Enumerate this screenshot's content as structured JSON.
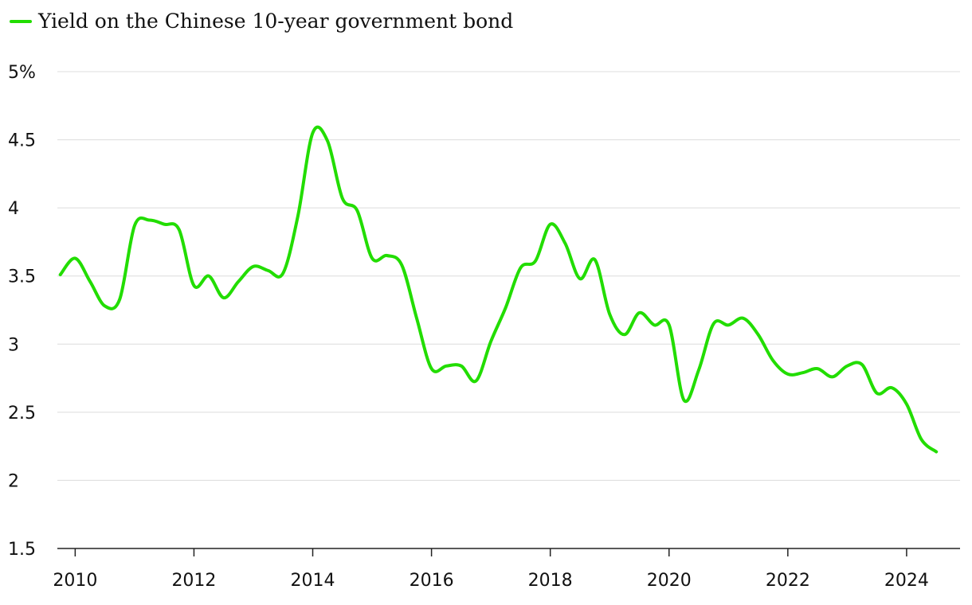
{
  "colors": {
    "series": "#22dd00",
    "grid": "#dcdcdc",
    "text": "#111111"
  },
  "chart_data": {
    "type": "line",
    "title": "",
    "xlabel": "",
    "ylabel": "",
    "legend_position": "top-left",
    "grid": true,
    "ylim": [
      1.5,
      5
    ],
    "xlim": [
      2009.7,
      2024.9
    ],
    "y_ticks": [
      1.5,
      2,
      2.5,
      3,
      3.5,
      4,
      4.5,
      5
    ],
    "y_tick_labels": [
      "1.5",
      "2",
      "2.5",
      "3",
      "3.5",
      "4",
      "4.5",
      "5%"
    ],
    "x_ticks": [
      2010,
      2012,
      2014,
      2016,
      2018,
      2020,
      2022,
      2024
    ],
    "x_tick_labels": [
      "2010",
      "2012",
      "2014",
      "2016",
      "2018",
      "2020",
      "2022",
      "2024"
    ],
    "series": [
      {
        "name": "Yield on the Chinese 10-year government bond",
        "x": [
          2009.75,
          2010.0,
          2010.25,
          2010.5,
          2010.75,
          2011.0,
          2011.25,
          2011.5,
          2011.75,
          2012.0,
          2012.25,
          2012.5,
          2012.75,
          2013.0,
          2013.25,
          2013.5,
          2013.75,
          2014.0,
          2014.25,
          2014.5,
          2014.75,
          2015.0,
          2015.25,
          2015.5,
          2015.75,
          2016.0,
          2016.25,
          2016.5,
          2016.75,
          2017.0,
          2017.25,
          2017.5,
          2017.75,
          2018.0,
          2018.25,
          2018.5,
          2018.75,
          2019.0,
          2019.25,
          2019.5,
          2019.75,
          2020.0,
          2020.25,
          2020.5,
          2020.75,
          2021.0,
          2021.25,
          2021.5,
          2021.75,
          2022.0,
          2022.25,
          2022.5,
          2022.75,
          2023.0,
          2023.25,
          2023.5,
          2023.75,
          2024.0,
          2024.25,
          2024.5
        ],
        "values": [
          3.51,
          3.63,
          3.46,
          3.28,
          3.33,
          3.87,
          3.91,
          3.88,
          3.84,
          3.43,
          3.5,
          3.34,
          3.46,
          3.57,
          3.54,
          3.52,
          3.94,
          4.55,
          4.49,
          4.07,
          3.98,
          3.63,
          3.65,
          3.58,
          3.19,
          2.82,
          2.84,
          2.84,
          2.73,
          3.02,
          3.27,
          3.56,
          3.61,
          3.88,
          3.74,
          3.48,
          3.62,
          3.22,
          3.07,
          3.23,
          3.14,
          3.14,
          2.59,
          2.81,
          3.15,
          3.14,
          3.19,
          3.07,
          2.88,
          2.78,
          2.79,
          2.82,
          2.76,
          2.84,
          2.85,
          2.64,
          2.68,
          2.56,
          2.3,
          2.21
        ]
      }
    ]
  }
}
